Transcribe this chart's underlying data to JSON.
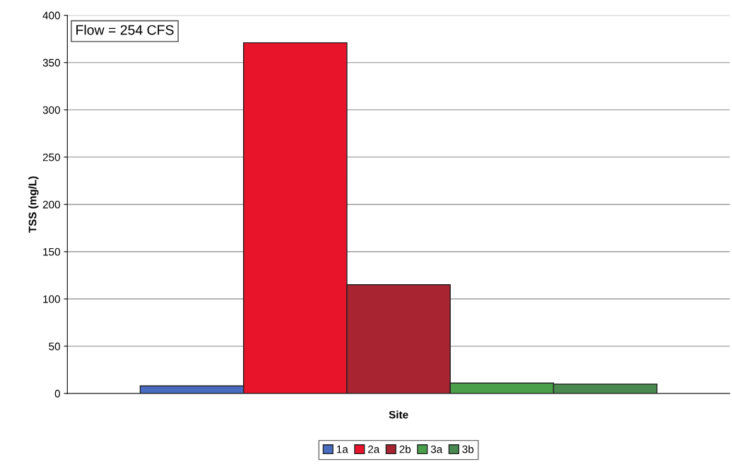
{
  "chart_data": {
    "type": "bar",
    "categories": [
      null
    ],
    "xlabel": "Site",
    "ylabel": "TSS (mg/L)",
    "series": [
      {
        "name": "1a",
        "color": "#4a6cc0",
        "values": [
          8
        ]
      },
      {
        "name": "2a",
        "color": "#e8142a",
        "values": [
          371
        ]
      },
      {
        "name": "2b",
        "color": "#a82430",
        "values": [
          115
        ]
      },
      {
        "name": "3a",
        "color": "#4aa04a",
        "values": [
          11
        ]
      },
      {
        "name": "3b",
        "color": "#4a8a50",
        "values": [
          10
        ]
      }
    ],
    "annotations": [
      "Flow = 254 CFS"
    ],
    "ylim": [
      0,
      400
    ],
    "yticks": [
      0,
      50,
      100,
      150,
      200,
      250,
      300,
      350,
      400
    ],
    "grid": "y",
    "legend": "bottom"
  }
}
